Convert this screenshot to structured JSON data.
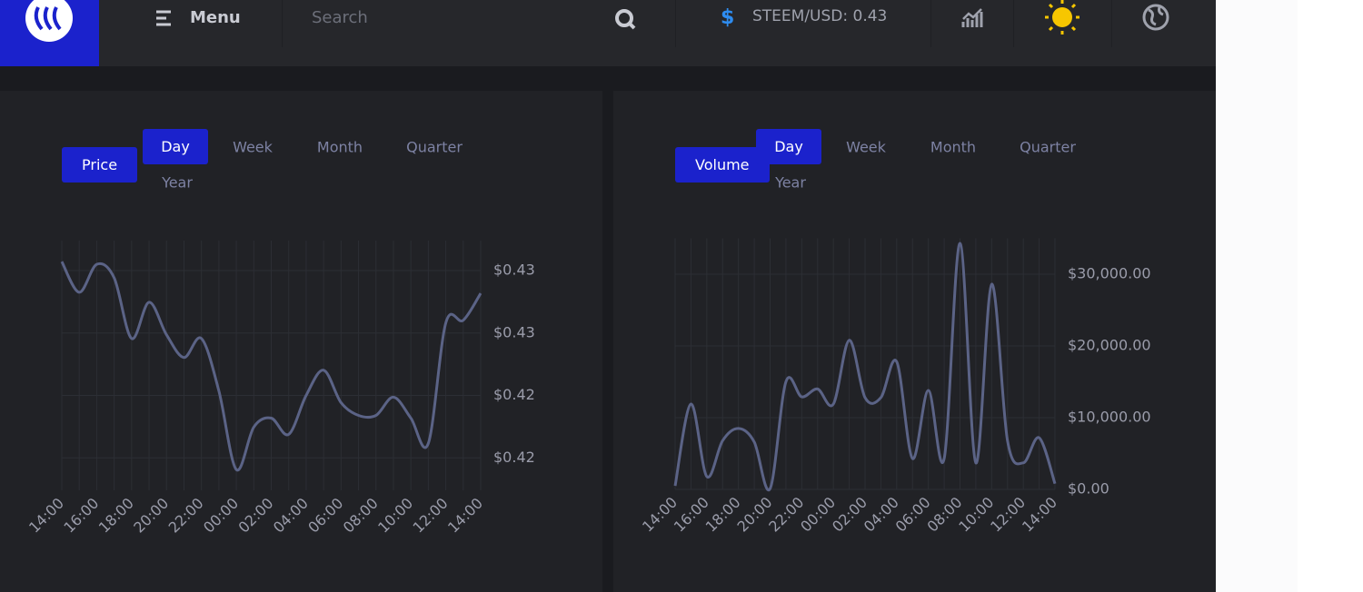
{
  "header": {
    "menu": "Menu",
    "search_placeholder": "Search",
    "currency_symbol": "$",
    "ticker": "STEEM/USD: 0.43"
  },
  "chart_data": [
    {
      "type": "line",
      "metric": "Price",
      "ranges": [
        "Day",
        "Week",
        "Month",
        "Quarter",
        "Year"
      ],
      "categories": [
        "14:00",
        null,
        "16:00",
        null,
        "18:00",
        null,
        "20:00",
        null,
        "22:00",
        null,
        "00:00",
        null,
        "02:00",
        null,
        "04:00",
        null,
        "06:00",
        null,
        "08:00",
        null,
        "10:00",
        null,
        "12:00",
        null,
        "14:00"
      ],
      "values": [
        0.42786,
        0.42663,
        0.42775,
        0.42721,
        0.42478,
        0.42623,
        0.42493,
        0.42402,
        0.42478,
        0.42268,
        0.41953,
        0.42123,
        0.42159,
        0.42094,
        0.4225,
        0.42351,
        0.42221,
        0.4217,
        0.4217,
        0.42243,
        0.42159,
        0.42058,
        0.4254,
        0.42551,
        0.42659
      ],
      "color": "#5b6386",
      "ylim": [
        0.4187,
        0.4287
      ],
      "yticks": [
        {
          "value": 0.42,
          "label": "$0.42"
        },
        {
          "value": 0.4225,
          "label": "$0.42"
        },
        {
          "value": 0.425,
          "label": "$0.43"
        },
        {
          "value": 0.4275,
          "label": "$0.43"
        }
      ],
      "grid": true
    },
    {
      "type": "line",
      "metric": "Volume",
      "ranges": [
        "Day",
        "Week",
        "Month",
        "Quarter",
        "Year"
      ],
      "categories": [
        "14:00",
        null,
        "16:00",
        null,
        "18:00",
        null,
        "20:00",
        null,
        "22:00",
        null,
        "00:00",
        null,
        "02:00",
        null,
        "04:00",
        null,
        "06:00",
        null,
        "08:00",
        null,
        "10:00",
        null,
        "12:00",
        null,
        "14:00"
      ],
      "values": [
        500,
        11900,
        1800,
        6800,
        8500,
        6600,
        100,
        15000,
        12900,
        14000,
        11900,
        20800,
        12800,
        12800,
        17800,
        4300,
        13800,
        4300,
        34300,
        3700,
        28600,
        6800,
        3700,
        7200,
        800
      ],
      "color": "#5b6386",
      "ylim": [
        0,
        35000
      ],
      "yticks": [
        {
          "value": 0,
          "label": "$0.00"
        },
        {
          "value": 10000,
          "label": "$10,000.00"
        },
        {
          "value": 20000,
          "label": "$20,000.00"
        },
        {
          "value": 30000,
          "label": "$30,000.00"
        }
      ],
      "grid": true
    }
  ]
}
